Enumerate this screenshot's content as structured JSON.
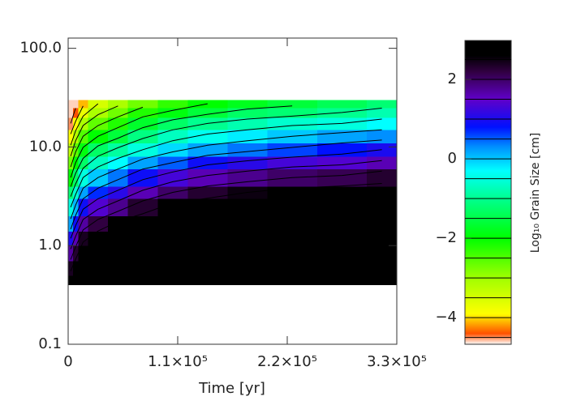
{
  "chart_data": {
    "type": "heatmap",
    "xlabel": "Time [yr]",
    "colorbar_label": "Log₁₀ Grain Size [cm]",
    "x_edges": [
      0,
      5000,
      10000,
      20000,
      40000,
      60000,
      90000,
      120000,
      160000,
      200000,
      250000,
      300000,
      330000
    ],
    "y_edges": [
      0.4,
      0.5,
      0.7,
      1,
      1.4,
      2,
      3,
      4,
      6,
      8,
      11,
      15,
      20,
      25,
      30
    ],
    "z": [
      [
        2.8,
        2.8,
        2.8,
        2.8,
        2.8,
        2.8,
        2.8,
        2.8,
        2.8,
        2.8,
        2.8,
        2.8
      ],
      [
        2.4,
        2.8,
        2.8,
        2.8,
        2.8,
        2.8,
        2.8,
        2.8,
        2.8,
        2.8,
        2.8,
        2.8
      ],
      [
        1.7,
        2.3,
        2.8,
        2.8,
        2.8,
        2.8,
        2.8,
        2.8,
        2.8,
        2.8,
        2.8,
        2.8
      ],
      [
        1.0,
        1.6,
        2.4,
        2.8,
        2.8,
        2.8,
        2.8,
        2.8,
        2.8,
        2.8,
        2.8,
        2.8
      ],
      [
        0.2,
        0.9,
        1.7,
        2.2,
        2.6,
        2.8,
        2.8,
        2.8,
        2.8,
        2.8,
        2.8,
        2.8
      ],
      [
        -0.5,
        0.1,
        0.9,
        1.4,
        1.8,
        2.3,
        2.7,
        2.8,
        2.8,
        2.8,
        2.8,
        2.8
      ],
      [
        -1.2,
        -0.6,
        0.2,
        0.7,
        1.1,
        1.6,
        2.0,
        2.3,
        2.5,
        2.7,
        2.8,
        2.8
      ],
      [
        -2.0,
        -1.3,
        -0.5,
        0,
        0.4,
        0.9,
        1.3,
        1.6,
        1.8,
        2.0,
        2.1,
        2.3
      ],
      [
        -2.7,
        -2.0,
        -1.3,
        -0.7,
        -0.3,
        0.2,
        0.5,
        0.9,
        1.1,
        1.3,
        1.4,
        1.6
      ],
      [
        -3.3,
        -2.6,
        -1.9,
        -1.3,
        -0.9,
        -0.5,
        -0.1,
        0.2,
        0.4,
        0.6,
        0.8,
        1.0
      ],
      [
        -3.9,
        -3.2,
        -2.5,
        -2.0,
        -1.6,
        -1.1,
        -0.7,
        -0.4,
        -0.2,
        0,
        0.2,
        0.3
      ],
      [
        -4.5,
        -3.9,
        -3.1,
        -2.6,
        -2.2,
        -1.7,
        -1.3,
        -1.0,
        -0.8,
        -0.6,
        -0.5,
        -0.3
      ],
      [
        -4.6,
        -4.4,
        -3.7,
        -3.1,
        -2.7,
        -2.2,
        -1.9,
        -1.6,
        -1.3,
        -1.2,
        -1.0,
        -0.8
      ],
      [
        -4.6,
        -4.6,
        -4.1,
        -3.5,
        -3.1,
        -2.7,
        -2.3,
        -2.0,
        -1.8,
        -1.6,
        -1.4,
        -1.2
      ]
    ],
    "xlim": [
      0,
      330000
    ],
    "xticks": [
      0,
      {
        "value": 110000,
        "label": "1.1×10⁵"
      },
      {
        "value": 220000,
        "label": "2.2×10⁵"
      },
      {
        "value": 330000,
        "label": "3.3×10⁵"
      }
    ],
    "ylim": [
      0.1,
      127
    ],
    "yticks": [
      0.1,
      {
        "value": 1,
        "label": "1.0"
      },
      {
        "value": 10,
        "label": "10.0"
      },
      {
        "value": 100,
        "label": "100.0"
      }
    ],
    "ylog": true,
    "zlim": [
      -4.67,
      2.98
    ],
    "zticks": [
      {
        "value": -4,
        "label": "−4"
      },
      {
        "value": -2,
        "label": "−2"
      },
      0,
      2
    ],
    "contour_levels": [
      -4.5,
      -4,
      -3.5,
      -3,
      -2.5,
      -2,
      -1.5,
      -1,
      -0.5,
      0,
      0.5,
      1,
      1.5,
      2,
      2.5
    ],
    "colormap": [
      {
        "value": -4.67,
        "color": "#ffffff"
      },
      {
        "value": -4.4,
        "color": "#ff5000"
      },
      {
        "value": -3.9,
        "color": "#ffff00"
      },
      {
        "value": -3.0,
        "color": "#a0ff00"
      },
      {
        "value": -2.0,
        "color": "#00ff00"
      },
      {
        "value": -1.0,
        "color": "#00ff90"
      },
      {
        "value": -0.3,
        "color": "#00ffff"
      },
      {
        "value": 0.3,
        "color": "#0090ff"
      },
      {
        "value": 0.8,
        "color": "#0010ff"
      },
      {
        "value": 1.5,
        "color": "#6000c8"
      },
      {
        "value": 2.2,
        "color": "#300040"
      },
      {
        "value": 2.6,
        "color": "#000000"
      },
      {
        "value": 2.98,
        "color": "#000000"
      }
    ]
  }
}
